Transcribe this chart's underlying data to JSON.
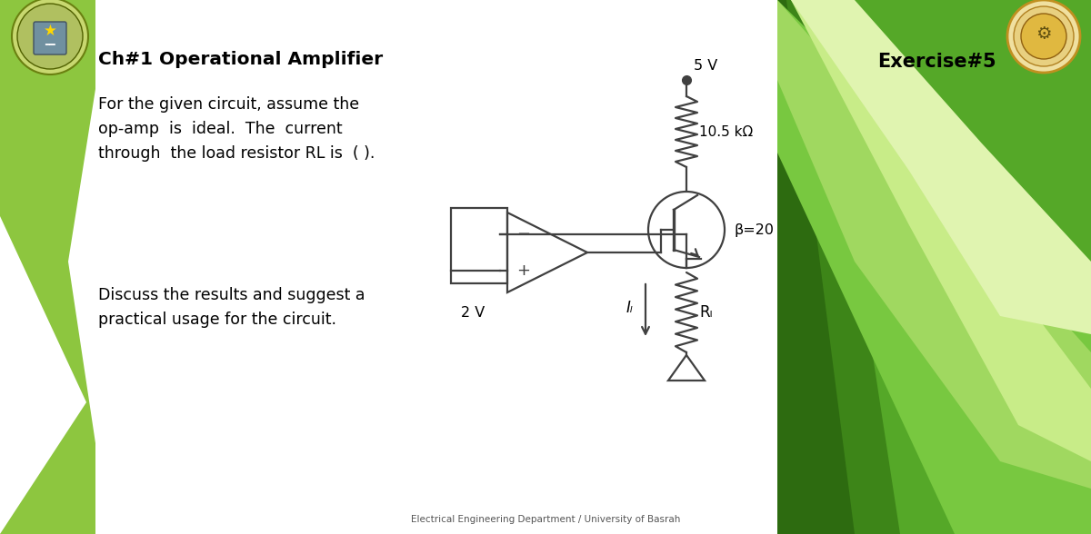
{
  "bg_color": "#ffffff",
  "green_left": "#8dc63f",
  "title": "Ch#1 Operational Amplifier",
  "exercise": "Exercise#5",
  "line1": "For the given circuit, assume the",
  "line2": "op-amp  is  ideal.  The  current",
  "line3": "through  the load resistor RL is  ( ).",
  "line4": "Discuss the results and suggest a",
  "line5": "practical usage for the circuit.",
  "footer": "Electrical Engineering Department / University of Basrah",
  "v5": "5 V",
  "rc_label": "10.5 kΩ",
  "beta": "β=20",
  "il": "Iₗ",
  "rl": "Rₗ",
  "v2": "2 V",
  "rp1": "#2d6b10",
  "rp2": "#3d8518",
  "rp3": "#55a828",
  "rp4": "#78c840",
  "rp5": "#a0d860",
  "rp6": "#c8ec88",
  "rp7": "#e0f4b0"
}
